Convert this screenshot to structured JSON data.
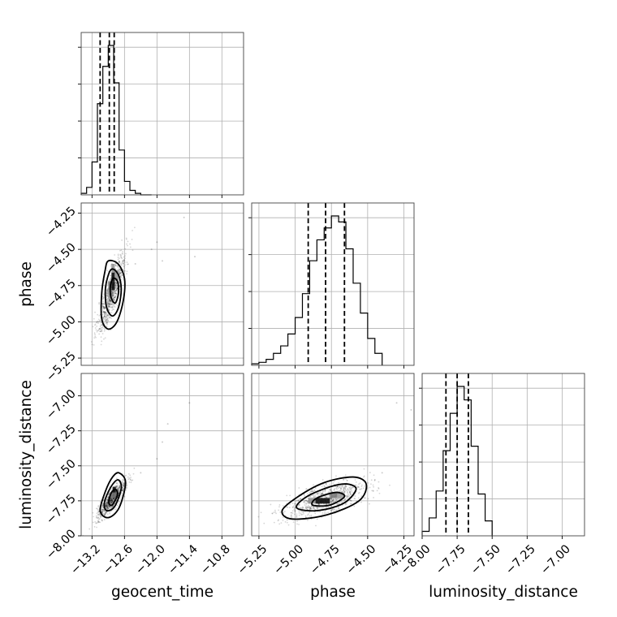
{
  "chart_data": {
    "type": "corner",
    "parameters": [
      "geocent_time",
      "phase",
      "luminosity_distance"
    ],
    "axis_labels": {
      "bottom": [
        "geocent_time",
        "phase",
        "luminosity_distance"
      ],
      "left": [
        "",
        "phase",
        "luminosity_distance"
      ]
    },
    "ranges": {
      "geocent_time": [
        -13.4,
        -10.4
      ],
      "phase": [
        -5.3,
        -4.18
      ],
      "luminosity_distance": [
        -8.0,
        -6.84
      ]
    },
    "ticks": {
      "geocent_time": [
        -13.2,
        -12.6,
        -12.0,
        -11.4,
        -10.8
      ],
      "phase": [
        -5.25,
        -5.0,
        -4.75,
        -4.5,
        -4.25
      ],
      "luminosity_distance": [
        -8.0,
        -7.75,
        -7.5,
        -7.25,
        -7.0
      ]
    },
    "tick_labels": {
      "geocent_time": [
        "−13.2",
        "−12.6",
        "−12.0",
        "−11.4",
        "−10.8"
      ],
      "phase": [
        "−5.25",
        "−5.00",
        "−4.75",
        "−4.50",
        "−4.25"
      ],
      "luminosity_distance": [
        "−8.00",
        "−7.75",
        "−7.50",
        "−7.25",
        "−7.00"
      ]
    },
    "grid": true,
    "histograms": {
      "geocent_time": {
        "bin_edges": [
          -13.4,
          -13.3,
          -13.2,
          -13.1,
          -13.0,
          -12.9,
          -12.8,
          -12.7,
          -12.6,
          -12.5,
          -12.4,
          -12.3,
          -12.2,
          -12.1
        ],
        "counts": [
          1,
          5,
          22,
          61,
          86,
          100,
          75,
          30,
          9,
          3,
          1,
          0,
          0
        ]
      },
      "phase": {
        "bin_edges": [
          -5.3,
          -5.25,
          -5.2,
          -5.15,
          -5.1,
          -5.05,
          -5.0,
          -4.95,
          -4.9,
          -4.85,
          -4.8,
          -4.75,
          -4.7,
          -4.65,
          -4.6,
          -4.55,
          -4.5,
          -4.45,
          -4.4
        ],
        "counts": [
          1,
          2,
          4,
          8,
          13,
          21,
          32,
          48,
          70,
          84,
          92,
          100,
          96,
          78,
          55,
          35,
          18,
          8
        ]
      },
      "luminosity_distance": {
        "bin_edges": [
          -8.0,
          -7.95,
          -7.9,
          -7.85,
          -7.8,
          -7.75,
          -7.7,
          -7.65,
          -7.6,
          -7.55,
          -7.5
        ],
        "counts": [
          3,
          12,
          30,
          57,
          82,
          100,
          91,
          60,
          28,
          10
        ]
      }
    },
    "quantiles": {
      "geocent_time": [
        -13.05,
        -12.88,
        -12.79
      ],
      "phase": [
        -4.91,
        -4.79,
        -4.66
      ],
      "luminosity_distance": [
        -7.83,
        -7.75,
        -7.67
      ]
    },
    "contours": [
      {
        "x": "geocent_time",
        "y": "phase",
        "levels": [
          [
            [
              -12.9,
              -4.58
            ],
            [
              -12.72,
              -4.6
            ],
            [
              -12.6,
              -4.7
            ],
            [
              -12.62,
              -4.85
            ],
            [
              -12.74,
              -5.0
            ],
            [
              -12.9,
              -5.05
            ],
            [
              -13.02,
              -4.98
            ],
            [
              -13.02,
              -4.8
            ],
            [
              -12.96,
              -4.65
            ]
          ],
          [
            [
              -12.85,
              -4.64
            ],
            [
              -12.72,
              -4.67
            ],
            [
              -12.66,
              -4.77
            ],
            [
              -12.71,
              -4.9
            ],
            [
              -12.82,
              -4.96
            ],
            [
              -12.93,
              -4.9
            ],
            [
              -12.95,
              -4.76
            ]
          ],
          [
            [
              -12.81,
              -4.7
            ],
            [
              -12.73,
              -4.72
            ],
            [
              -12.71,
              -4.8
            ],
            [
              -12.77,
              -4.87
            ],
            [
              -12.85,
              -4.83
            ],
            [
              -12.86,
              -4.75
            ]
          ]
        ]
      },
      {
        "x": "geocent_time",
        "y": "luminosity_distance",
        "levels": [
          [
            [
              -12.7,
              -7.55
            ],
            [
              -12.58,
              -7.62
            ],
            [
              -12.7,
              -7.8
            ],
            [
              -12.9,
              -7.87
            ],
            [
              -13.05,
              -7.82
            ],
            [
              -12.95,
              -7.68
            ],
            [
              -12.82,
              -7.58
            ]
          ],
          [
            [
              -12.72,
              -7.6
            ],
            [
              -12.66,
              -7.66
            ],
            [
              -12.78,
              -7.79
            ],
            [
              -12.93,
              -7.82
            ],
            [
              -12.97,
              -7.76
            ],
            [
              -12.85,
              -7.65
            ]
          ],
          [
            [
              -12.76,
              -7.67
            ],
            [
              -12.73,
              -7.71
            ],
            [
              -12.83,
              -7.78
            ],
            [
              -12.89,
              -7.76
            ],
            [
              -12.84,
              -7.69
            ]
          ]
        ]
      },
      {
        "x": "phase",
        "y": "luminosity_distance",
        "levels": [
          [
            [
              -4.6,
              -7.58
            ],
            [
              -4.51,
              -7.63
            ],
            [
              -4.56,
              -7.75
            ],
            [
              -4.78,
              -7.85
            ],
            [
              -5.02,
              -7.88
            ],
            [
              -5.09,
              -7.82
            ],
            [
              -4.98,
              -7.72
            ],
            [
              -4.8,
              -7.62
            ]
          ],
          [
            [
              -4.64,
              -7.63
            ],
            [
              -4.58,
              -7.67
            ],
            [
              -4.67,
              -7.77
            ],
            [
              -4.85,
              -7.82
            ],
            [
              -4.99,
              -7.8
            ],
            [
              -4.92,
              -7.72
            ],
            [
              -4.76,
              -7.65
            ]
          ],
          [
            [
              -4.72,
              -7.69
            ],
            [
              -4.66,
              -7.72
            ],
            [
              -4.76,
              -7.78
            ],
            [
              -4.88,
              -7.78
            ],
            [
              -4.85,
              -7.73
            ]
          ]
        ]
      }
    ],
    "density_blocks": [
      {
        "x": "geocent_time",
        "y": "phase",
        "cells": [
          {
            "x": -12.84,
            "y": -4.72,
            "w": 0.06,
            "h": 0.06,
            "level": 1.0
          },
          {
            "x": -12.84,
            "y": -4.78,
            "w": 0.06,
            "h": 0.06,
            "level": 1.0
          },
          {
            "x": -12.9,
            "y": -4.78,
            "w": 0.06,
            "h": 0.06,
            "level": 0.55
          },
          {
            "x": -12.9,
            "y": -4.84,
            "w": 0.06,
            "h": 0.06,
            "level": 0.45
          },
          {
            "x": -12.84,
            "y": -4.66,
            "w": 0.06,
            "h": 0.06,
            "level": 0.45
          },
          {
            "x": -12.78,
            "y": -4.72,
            "w": 0.06,
            "h": 0.06,
            "level": 0.4
          }
        ]
      },
      {
        "x": "geocent_time",
        "y": "luminosity_distance",
        "cells": [
          {
            "x": -12.82,
            "y": -7.69,
            "w": 0.06,
            "h": 0.04,
            "level": 1.0
          },
          {
            "x": -12.88,
            "y": -7.73,
            "w": 0.06,
            "h": 0.04,
            "level": 0.55
          },
          {
            "x": -12.82,
            "y": -7.73,
            "w": 0.06,
            "h": 0.04,
            "level": 0.6
          }
        ]
      },
      {
        "x": "phase",
        "y": "luminosity_distance",
        "cells": [
          {
            "x": -4.86,
            "y": -7.77,
            "w": 0.05,
            "h": 0.04,
            "level": 1.0
          },
          {
            "x": -4.81,
            "y": -7.77,
            "w": 0.05,
            "h": 0.04,
            "level": 1.0
          },
          {
            "x": -4.76,
            "y": -7.73,
            "w": 0.05,
            "h": 0.04,
            "level": 0.55
          },
          {
            "x": -4.91,
            "y": -7.77,
            "w": 0.05,
            "h": 0.04,
            "level": 0.45
          },
          {
            "x": -4.71,
            "y": -7.73,
            "w": 0.05,
            "h": 0.04,
            "level": 0.4
          }
        ]
      }
    ],
    "posterior_samples": {
      "n_per_panel": 900,
      "geocent_time": {
        "mean": -12.83,
        "sd": 0.13
      },
      "phase": {
        "mean": -4.79,
        "sd": 0.14
      },
      "luminosity_distance": {
        "mean": -7.74,
        "sd": 0.065
      },
      "correlation": {
        "geocent_time|phase": 0.85,
        "geocent_time|luminosity_distance": 0.85,
        "phase|luminosity_distance": 0.6
      },
      "outliers": {
        "geocent_time|phase": [
          [
            -12.4,
            -4.6
          ],
          [
            -12.1,
            -4.5
          ],
          [
            -11.9,
            -4.58
          ],
          [
            -11.5,
            -4.28
          ],
          [
            -12.0,
            -4.45
          ],
          [
            -11.3,
            -4.55
          ]
        ],
        "geocent_time|luminosity_distance": [
          [
            -12.3,
            -7.55
          ],
          [
            -12.0,
            -7.45
          ],
          [
            -11.9,
            -7.33
          ],
          [
            -11.4,
            -7.05
          ],
          [
            -11.8,
            -7.2
          ]
        ],
        "phase|luminosity_distance": [
          [
            -4.45,
            -7.6
          ],
          [
            -4.4,
            -7.55
          ],
          [
            -4.3,
            -7.05
          ],
          [
            -4.2,
            -7.1
          ]
        ]
      }
    }
  }
}
